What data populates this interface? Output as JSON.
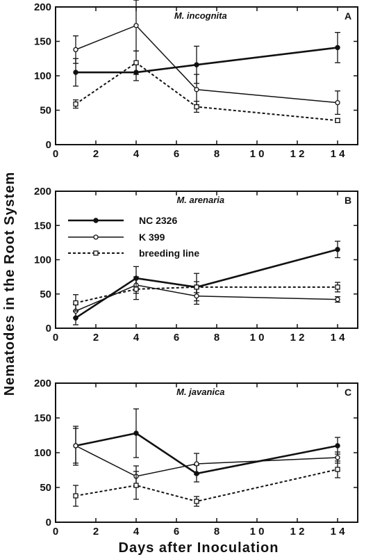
{
  "figure": {
    "ylabel": "Nematodes  in  the  Root  System",
    "xlabel": "Days   after   Inoculation"
  },
  "legend": [
    {
      "name": "NC 2326",
      "style": "solid-filled"
    },
    {
      "name": "K 399",
      "style": "thin-open-circle"
    },
    {
      "name": "breeding line",
      "style": "dashed-open-square"
    }
  ],
  "chart_data": [
    {
      "type": "line",
      "title": "M.  incognita",
      "panel": "A",
      "xlim": [
        0,
        15
      ],
      "ylim": [
        0,
        200
      ],
      "xticks": [
        0,
        2,
        4,
        6,
        8,
        10,
        12,
        14
      ],
      "xtick_labels": [
        "0",
        "2",
        "4",
        "6",
        "8",
        "1 0",
        "1 2",
        "1 4"
      ],
      "yticks": [
        0,
        50,
        100,
        150,
        200
      ],
      "series": [
        {
          "name": "NC 2326",
          "x": [
            1,
            4,
            7,
            14
          ],
          "y": [
            105,
            105,
            116,
            141
          ],
          "err": [
            20,
            12,
            27,
            22
          ]
        },
        {
          "name": "K 399",
          "x": [
            1,
            4,
            7,
            14
          ],
          "y": [
            138,
            173,
            80,
            61
          ],
          "err": [
            20,
            37,
            22,
            17
          ]
        },
        {
          "name": "breeding line",
          "x": [
            1,
            4,
            7,
            14
          ],
          "y": [
            59,
            119,
            55,
            35
          ],
          "err": [
            6,
            17,
            8,
            3
          ]
        }
      ]
    },
    {
      "type": "line",
      "title": "M.  arenaria",
      "panel": "B",
      "xlim": [
        0,
        15
      ],
      "ylim": [
        0,
        200
      ],
      "xticks": [
        0,
        2,
        4,
        6,
        8,
        10,
        12,
        14
      ],
      "xtick_labels": [
        "0",
        "2",
        "4",
        "6",
        "8",
        "1 0",
        "1 2",
        "1 4"
      ],
      "yticks": [
        0,
        50,
        100,
        150,
        200
      ],
      "series": [
        {
          "name": "NC 2326",
          "x": [
            1,
            4,
            7,
            14
          ],
          "y": [
            15,
            73,
            60,
            115
          ],
          "err": [
            10,
            17,
            20,
            12
          ]
        },
        {
          "name": "K 399",
          "x": [
            1,
            4,
            7,
            14
          ],
          "y": [
            25,
            63,
            47,
            42
          ],
          "err": [
            10,
            12,
            12,
            4
          ]
        },
        {
          "name": "breeding line",
          "x": [
            1,
            4,
            7,
            14
          ],
          "y": [
            37,
            57,
            60,
            60
          ],
          "err": [
            12,
            15,
            8,
            7
          ]
        }
      ]
    },
    {
      "type": "line",
      "title": "M.  javanica",
      "panel": "C",
      "xlim": [
        0,
        15
      ],
      "ylim": [
        0,
        200
      ],
      "xticks": [
        0,
        2,
        4,
        6,
        8,
        10,
        12,
        14
      ],
      "xtick_labels": [
        "0",
        "2",
        "4",
        "6",
        "8",
        "1 0",
        "1 2",
        "1 4"
      ],
      "yticks": [
        0,
        50,
        100,
        150,
        200
      ],
      "series": [
        {
          "name": "NC 2326",
          "x": [
            1,
            4,
            7,
            14
          ],
          "y": [
            110,
            128,
            70,
            110
          ],
          "err": [
            28,
            35,
            12,
            12
          ]
        },
        {
          "name": "K 399",
          "x": [
            1,
            4,
            7,
            14
          ],
          "y": [
            110,
            66,
            84,
            93
          ],
          "err": [
            25,
            15,
            15,
            8
          ]
        },
        {
          "name": "breeding line",
          "x": [
            1,
            4,
            7,
            14
          ],
          "y": [
            38,
            53,
            30,
            76
          ],
          "err": [
            15,
            20,
            7,
            12
          ]
        }
      ]
    }
  ]
}
